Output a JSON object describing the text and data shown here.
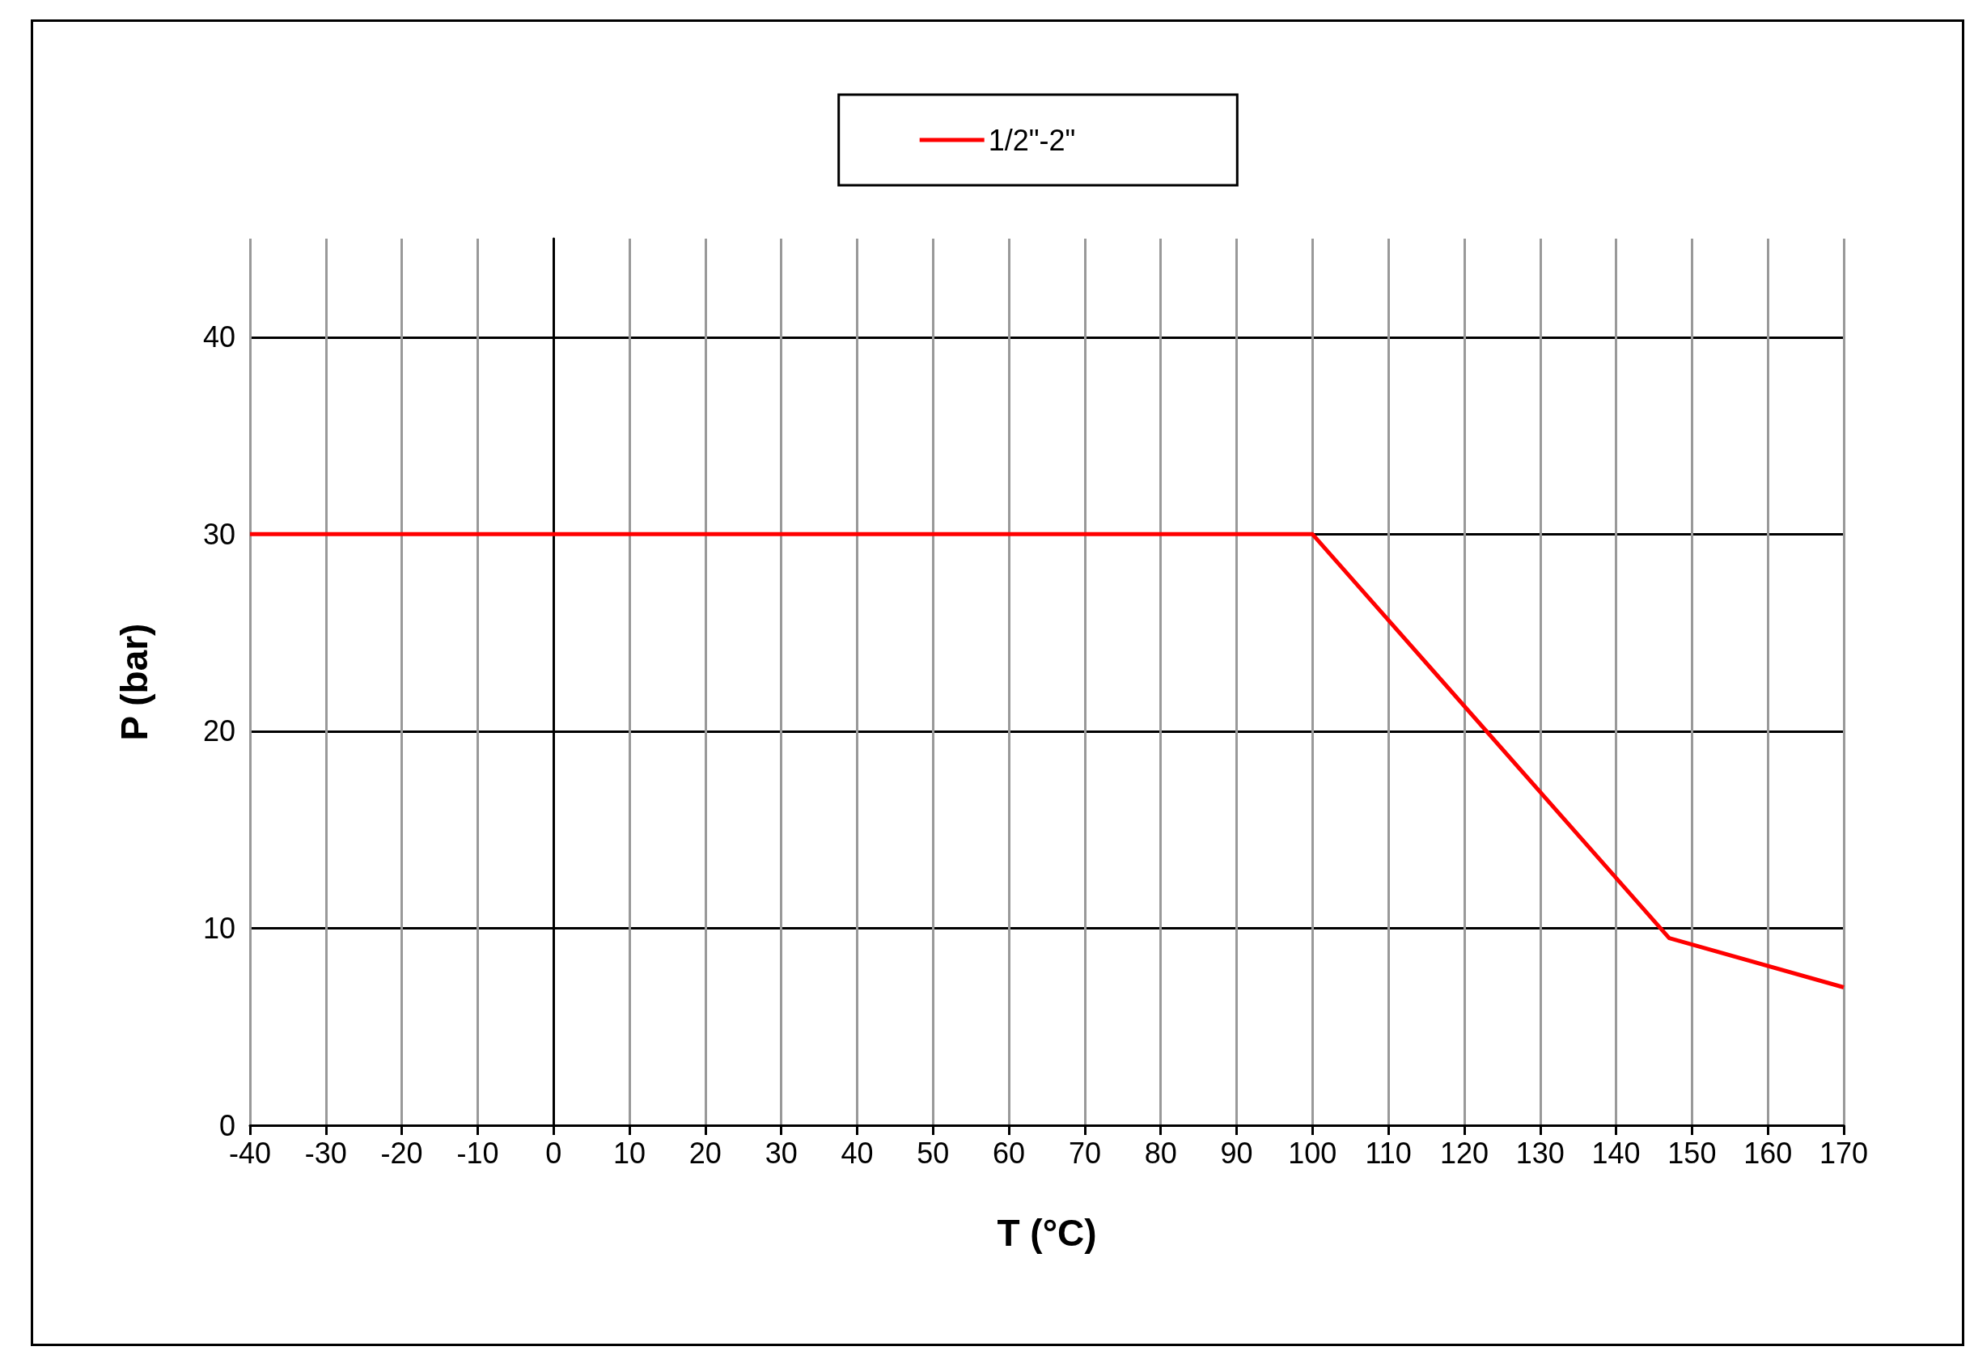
{
  "chart_data": {
    "type": "line",
    "xlabel": "T (°C)",
    "ylabel": "P (bar)",
    "x": [
      -40,
      100,
      147,
      170
    ],
    "series": [
      {
        "name": "1/2\"-2\"",
        "color": "#ff0000",
        "values": [
          30,
          30,
          9.5,
          7
        ]
      }
    ],
    "xlim": [
      -40,
      170
    ],
    "xticks": [
      -40,
      -30,
      -20,
      -10,
      0,
      10,
      20,
      30,
      40,
      50,
      60,
      70,
      80,
      90,
      100,
      110,
      120,
      130,
      140,
      150,
      160,
      170
    ],
    "ylim": [
      0,
      45
    ],
    "yticks": [
      0,
      10,
      20,
      30,
      40
    ],
    "grid": true,
    "legend": "top",
    "marker": "none",
    "line_style": "solid"
  }
}
